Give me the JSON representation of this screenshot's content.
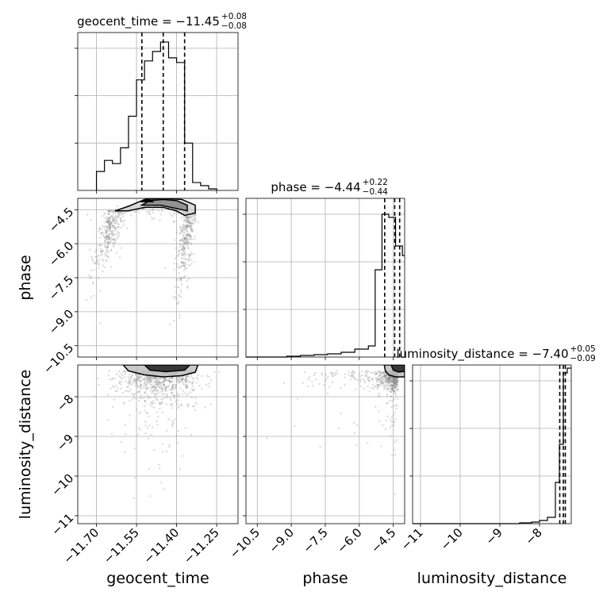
{
  "chart_data": {
    "type": "corner",
    "parameters": [
      {
        "name": "geocent_time",
        "title": "geocent_time = −11.45",
        "median": -11.45,
        "plus": "+0.08",
        "minus": "−0.08",
        "range": [
          -11.77,
          -11.17
        ],
        "ticks": [
          -11.7,
          -11.55,
          -11.4,
          -11.25
        ],
        "tick_labels": [
          "−11.70",
          "−11.55",
          "−11.40",
          "−11.25"
        ],
        "quantiles": [
          -11.53,
          -11.45,
          -11.37
        ],
        "histogram": {
          "edges": [
            -11.7,
            -11.67,
            -11.64,
            -11.61,
            -11.58,
            -11.55,
            -11.52,
            -11.49,
            -11.46,
            -11.43,
            -11.4,
            -11.37,
            -11.34,
            -11.31,
            -11.28,
            -11.25
          ],
          "heights": [
            0.12,
            0.19,
            0.17,
            0.27,
            0.47,
            0.7,
            0.82,
            0.88,
            0.94,
            0.84,
            0.81,
            0.3,
            0.05,
            0.03,
            0.01
          ]
        },
        "xlabel": "geocent_time"
      },
      {
        "name": "phase",
        "title": "phase = −4.44",
        "median": -4.44,
        "plus": "+0.22",
        "minus": "−0.44",
        "range": [
          -11.0,
          -4.0
        ],
        "ticks": [
          -10.5,
          -9.0,
          -7.5,
          -6.0,
          -4.5
        ],
        "tick_labels": [
          "−10.5",
          "−9.0",
          "−7.5",
          "−6.0",
          "−4.5"
        ],
        "quantiles": [
          -4.88,
          -4.44,
          -4.22
        ],
        "histogram": {
          "edges": [
            -11.0,
            -10.4,
            -9.8,
            -9.2,
            -8.6,
            -8.0,
            -7.4,
            -6.8,
            -6.2,
            -5.6,
            -5.3,
            -5.0,
            -4.7,
            -4.4,
            -4.1,
            -4.0
          ],
          "heights": [
            0.0,
            0.0,
            0.0,
            0.005,
            0.01,
            0.015,
            0.02,
            0.03,
            0.05,
            0.07,
            0.55,
            0.9,
            0.88,
            0.7,
            0.64
          ]
        },
        "ylabel": "phase",
        "xlabel": "phase"
      },
      {
        "name": "luminosity_distance",
        "title": "luminosity_distance = −7.40",
        "median": -7.4,
        "plus": "+0.05",
        "minus": "−0.09",
        "range": [
          -11.2,
          -7.2
        ],
        "ticks": [
          -11,
          -10,
          -9,
          -8
        ],
        "tick_labels": [
          "−11",
          "−10",
          "−9",
          "−8"
        ],
        "quantiles": [
          -7.49,
          -7.4,
          -7.35
        ],
        "histogram": {
          "edges": [
            -11.2,
            -10.5,
            -10.0,
            -9.5,
            -9.0,
            -8.5,
            -8.2,
            -8.0,
            -7.8,
            -7.6,
            -7.5,
            -7.4,
            -7.3,
            -7.2
          ],
          "heights": [
            0.0,
            0.0,
            0.0,
            0.0,
            0.0,
            0.005,
            0.01,
            0.02,
            0.04,
            0.26,
            0.5,
            0.95,
            0.98
          ]
        },
        "ylabel": "luminosity_distance",
        "xlabel": "luminosity_distance"
      }
    ],
    "hist_ylim": [
      0,
      1
    ],
    "hist_grid_fractions": [
      0.3,
      0.6,
      0.9
    ],
    "grid": true,
    "contour_color": "#000000",
    "point_color": "#888888"
  }
}
